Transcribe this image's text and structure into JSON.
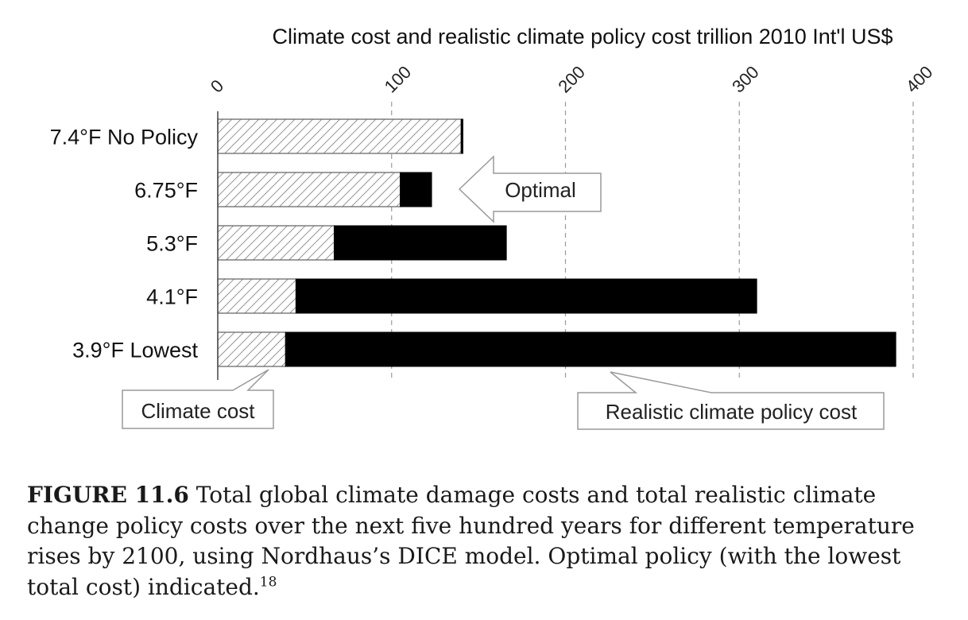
{
  "chart_data": {
    "type": "bar",
    "orientation": "horizontal",
    "stacked": true,
    "title": "Climate cost and realistic climate policy cost trillion 2010 Int'l US$",
    "xlim": [
      0,
      400
    ],
    "xticks": [
      0,
      100,
      200,
      300,
      400
    ],
    "grid": true,
    "categories": [
      "7.4°F No Policy",
      "6.75°F",
      "5.3°F",
      "4.1°F",
      "3.9°F Lowest"
    ],
    "series": [
      {
        "name": "Climate cost",
        "pattern": "hatched",
        "values": [
          140,
          105,
          67,
          45,
          39
        ]
      },
      {
        "name": "Realistic climate policy cost",
        "color": "#000000",
        "values": [
          1,
          18,
          99,
          265,
          351
        ]
      }
    ],
    "callouts": {
      "optimal": "Optimal",
      "climate_cost": "Climate cost",
      "policy_cost": "Realistic climate policy cost"
    }
  },
  "caption": {
    "label": "FIGURE 11.6",
    "text": " Total global climate damage costs and total realistic climate change policy costs over the next five hundred years for different temperature rises by 2100, using Nordhaus’s DICE model. Optimal policy (with the lowest total cost) indicated.",
    "footnote": "18"
  }
}
